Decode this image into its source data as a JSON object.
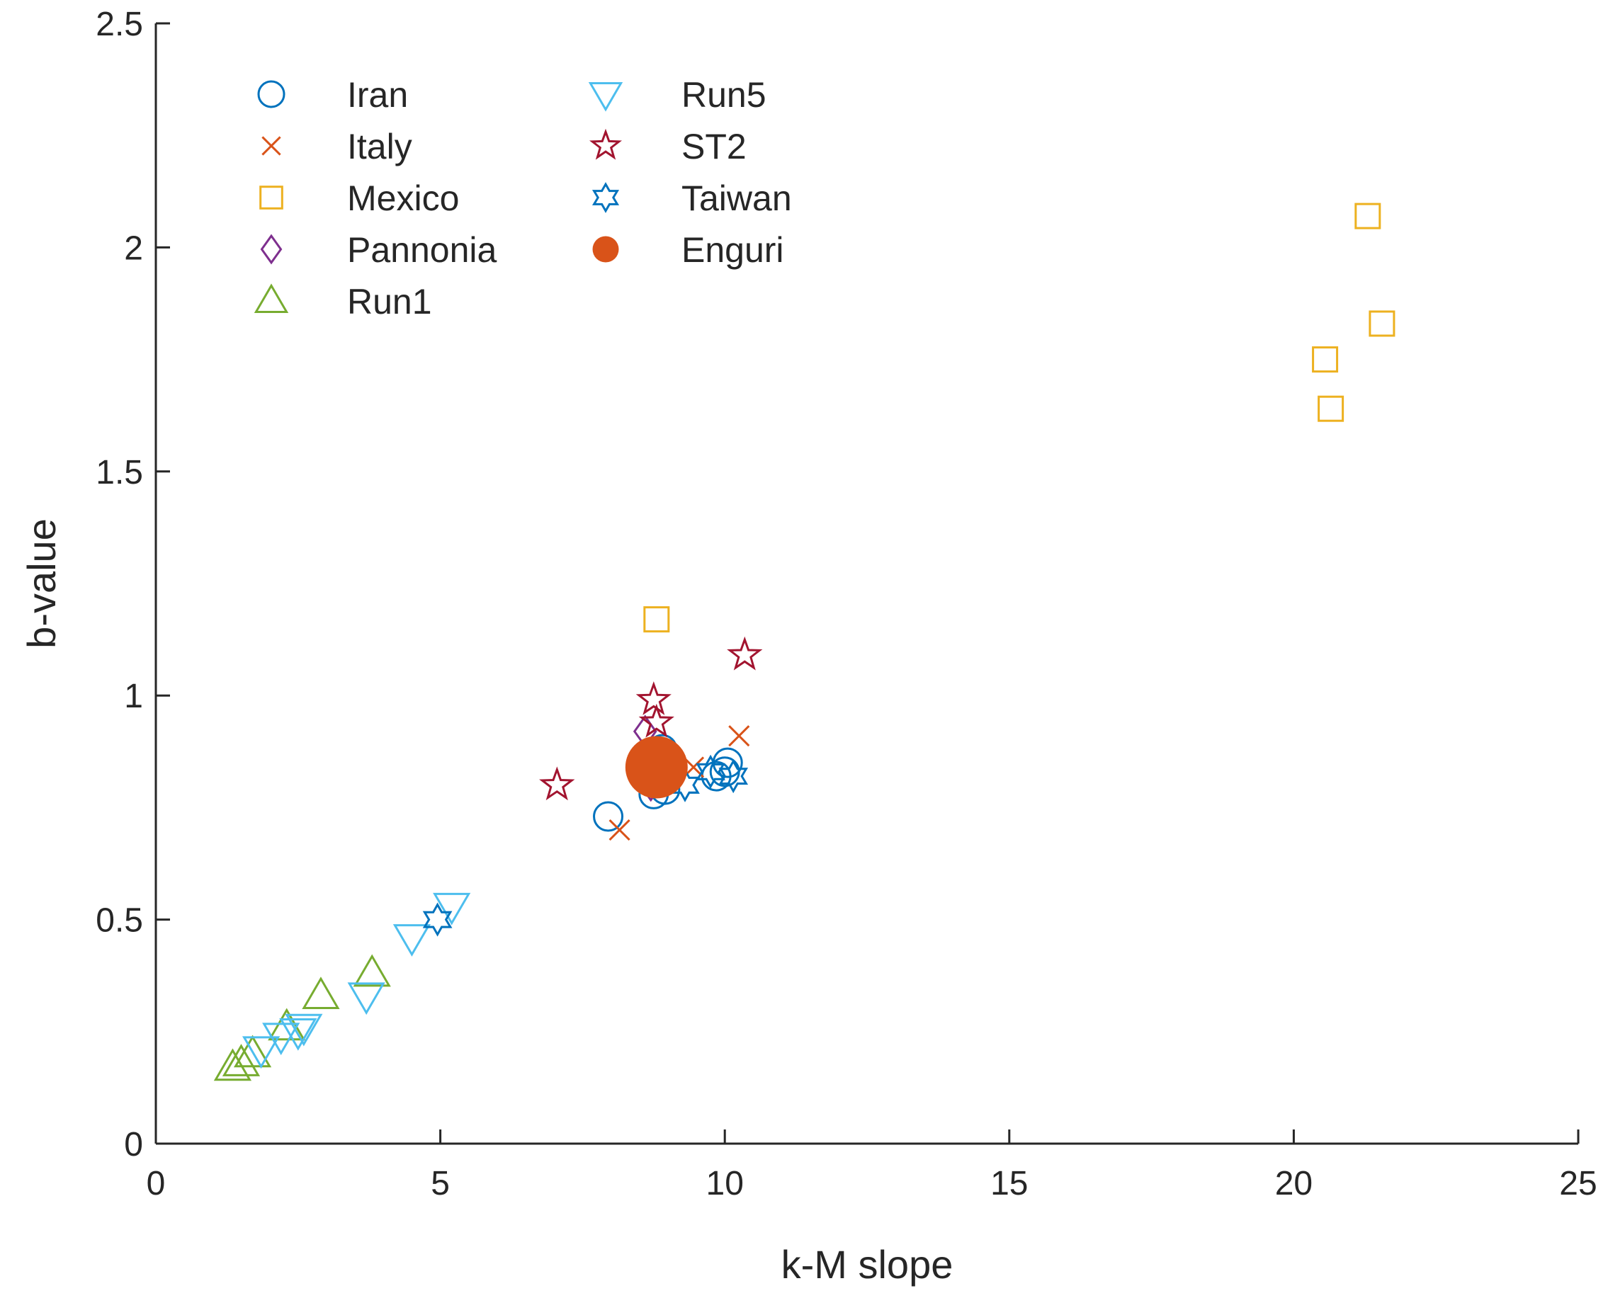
{
  "chart_data": {
    "type": "scatter",
    "title": "",
    "xlabel": "k-M slope",
    "ylabel": "b-value",
    "xlim": [
      0,
      25
    ],
    "ylim": [
      0,
      2.5
    ],
    "xticks": [
      0,
      5,
      10,
      15,
      20,
      25
    ],
    "yticks": [
      0,
      0.5,
      1,
      1.5,
      2,
      2.5
    ],
    "xtick_labels": [
      "0",
      "5",
      "10",
      "15",
      "20",
      "25"
    ],
    "ytick_labels": [
      "0",
      "0.5",
      "1",
      "1.5",
      "2",
      "2.5"
    ],
    "grid": false,
    "legend_position": "top-left",
    "series": [
      {
        "name": "Iran",
        "marker": "circle",
        "color": "#0072BD",
        "points": [
          [
            7.95,
            0.73
          ],
          [
            8.75,
            0.78
          ],
          [
            8.95,
            0.79
          ],
          [
            8.9,
            0.88
          ],
          [
            9.85,
            0.82
          ],
          [
            10.0,
            0.83
          ],
          [
            10.05,
            0.85
          ]
        ]
      },
      {
        "name": "Italy",
        "marker": "x",
        "color": "#D95319",
        "points": [
          [
            8.15,
            0.7
          ],
          [
            9.45,
            0.84
          ],
          [
            10.25,
            0.91
          ]
        ]
      },
      {
        "name": "Mexico",
        "marker": "square",
        "color": "#EDB120",
        "points": [
          [
            8.8,
            1.17
          ],
          [
            20.55,
            1.75
          ],
          [
            20.65,
            1.64
          ],
          [
            21.3,
            2.07
          ],
          [
            21.55,
            1.83
          ]
        ]
      },
      {
        "name": "Pannonia",
        "marker": "diamond",
        "color": "#7E2F8E",
        "points": [
          [
            8.6,
            0.92
          ],
          [
            8.7,
            0.8
          ]
        ]
      },
      {
        "name": "Run1",
        "marker": "triangle-up",
        "color": "#77AC30",
        "points": [
          [
            1.35,
            0.17
          ],
          [
            1.5,
            0.18
          ],
          [
            1.7,
            0.2
          ],
          [
            2.3,
            0.26
          ],
          [
            2.9,
            0.33
          ],
          [
            3.8,
            0.38
          ]
        ]
      },
      {
        "name": "Run5",
        "marker": "triangle-down",
        "color": "#4DBEEE",
        "points": [
          [
            1.85,
            0.21
          ],
          [
            2.2,
            0.24
          ],
          [
            2.5,
            0.25
          ],
          [
            2.6,
            0.26
          ],
          [
            3.7,
            0.33
          ],
          [
            4.5,
            0.46
          ],
          [
            5.2,
            0.53
          ]
        ]
      },
      {
        "name": "ST2",
        "marker": "star5",
        "color": "#A2142F",
        "points": [
          [
            7.05,
            0.8
          ],
          [
            8.75,
            0.99
          ],
          [
            8.8,
            0.94
          ],
          [
            10.35,
            1.09
          ]
        ]
      },
      {
        "name": "Taiwan",
        "marker": "star6",
        "color": "#0072BD",
        "points": [
          [
            4.95,
            0.5
          ],
          [
            9.3,
            0.8
          ],
          [
            9.75,
            0.83
          ],
          [
            10.15,
            0.82
          ]
        ]
      },
      {
        "name": "Enguri",
        "marker": "filled-circle",
        "color": "#D95319",
        "points": [
          [
            8.8,
            0.84
          ]
        ]
      }
    ]
  }
}
